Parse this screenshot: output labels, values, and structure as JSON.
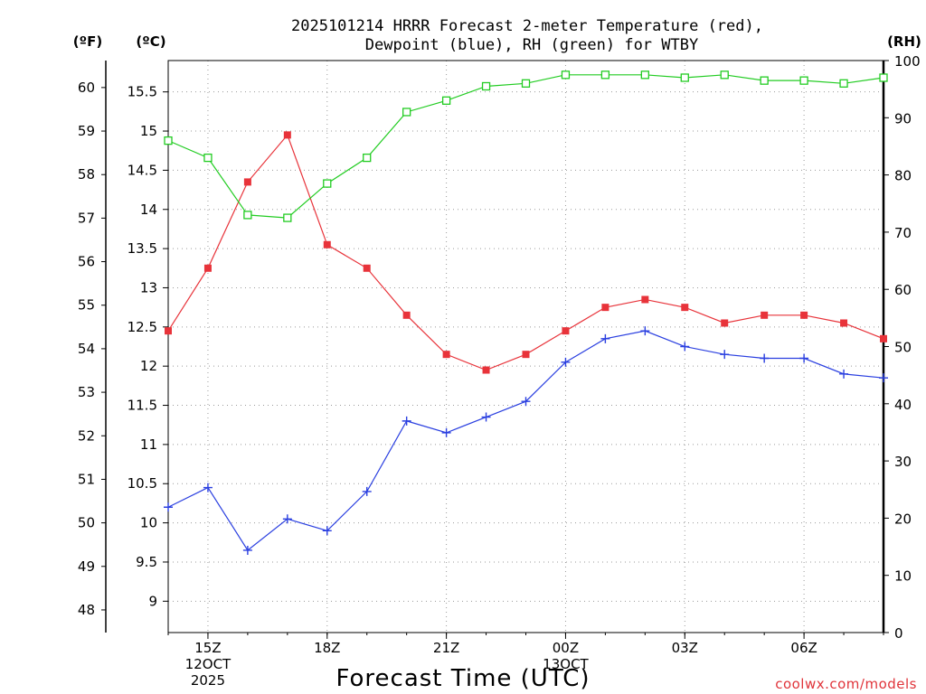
{
  "chart_data": {
    "type": "line",
    "title_line1": "2025101214 HRRR Forecast 2-meter Temperature (red),",
    "title_line2": "Dewpoint (blue), RH (green) for WTBY",
    "xlabel": "Forecast Time (UTC)",
    "credit": "coolwx.com/models",
    "units": {
      "fahrenheit": "(ºF)",
      "celsius": "(ºC)",
      "rh": "(RH)"
    },
    "x_hours": [
      14,
      15,
      16,
      17,
      18,
      19,
      20,
      21,
      22,
      23,
      0,
      1,
      2,
      3,
      4,
      5,
      6,
      7,
      8
    ],
    "x_ticks": [
      {
        "index": 1,
        "lines": [
          "15Z",
          "12OCT",
          "2025"
        ]
      },
      {
        "index": 4,
        "lines": [
          "18Z"
        ]
      },
      {
        "index": 7,
        "lines": [
          "21Z"
        ]
      },
      {
        "index": 10,
        "lines": [
          "00Z",
          "13OCT"
        ]
      },
      {
        "index": 13,
        "lines": [
          "03Z"
        ]
      },
      {
        "index": 16,
        "lines": [
          "06Z"
        ]
      }
    ],
    "celsius_range": [
      8.6,
      15.9
    ],
    "celsius_ticks": [
      "9",
      "9.5",
      "10",
      "10.5",
      "11",
      "11.5",
      "12",
      "12.5",
      "13",
      "13.5",
      "14",
      "14.5",
      "15",
      "15.5"
    ],
    "fahrenheit_ticks": [
      "48",
      "49",
      "50",
      "51",
      "52",
      "53",
      "54",
      "55",
      "56",
      "57",
      "58",
      "59",
      "60"
    ],
    "rh_range": [
      0,
      100
    ],
    "rh_ticks": [
      "0",
      "10",
      "20",
      "30",
      "40",
      "50",
      "60",
      "70",
      "80",
      "90",
      "100"
    ],
    "series": [
      {
        "name": "Temperature",
        "unit": "C",
        "color": "#e8333a",
        "marker": "filled-square",
        "values": [
          12.45,
          13.25,
          14.35,
          14.95,
          13.55,
          13.25,
          12.65,
          12.15,
          11.95,
          12.15,
          12.45,
          12.75,
          12.85,
          12.75,
          12.55,
          12.65,
          12.65,
          12.55,
          12.35
        ]
      },
      {
        "name": "Dewpoint",
        "unit": "C",
        "color": "#2a3fe0",
        "marker": "plus",
        "values": [
          10.2,
          10.45,
          9.65,
          10.05,
          9.9,
          10.4,
          11.3,
          11.15,
          11.35,
          11.55,
          12.05,
          12.35,
          12.45,
          12.25,
          12.15,
          12.1,
          12.1,
          11.9,
          11.85
        ]
      },
      {
        "name": "RH",
        "unit": "%",
        "color": "#22cc22",
        "marker": "open-square",
        "values": [
          86,
          83,
          73,
          72.5,
          78.5,
          83,
          91,
          93,
          95.5,
          96,
          97.5,
          97.5,
          97.5,
          97,
          97.5,
          96.5,
          96.5,
          96,
          97
        ]
      }
    ]
  }
}
